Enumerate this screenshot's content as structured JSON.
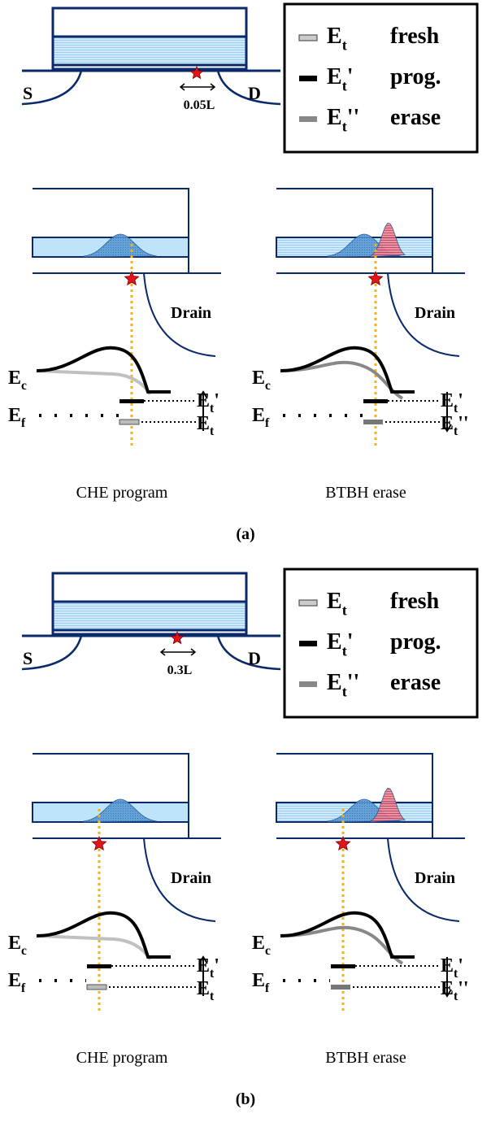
{
  "panels": [
    {
      "label": "(a)",
      "device": {
        "source": "S",
        "drain": "D",
        "offset": "0.05L"
      },
      "legend": [
        {
          "symbol": "E",
          "sub": "t",
          "text": "fresh"
        },
        {
          "symbol": "E",
          "sub": "t",
          "prime": "'",
          "text": "prog."
        },
        {
          "symbol": "E",
          "sub": "t",
          "prime": "''",
          "text": "erase"
        }
      ],
      "program": {
        "drain": "Drain",
        "ec": {
          "symbol": "E",
          "sub": "c"
        },
        "ef": {
          "symbol": "E",
          "sub": "f"
        },
        "upper": {
          "symbol": "E",
          "sub": "t",
          "prime": "'"
        },
        "lower": {
          "symbol": "E",
          "sub": "t"
        },
        "caption": "CHE program"
      },
      "erase": {
        "drain": "Drain",
        "ec": {
          "symbol": "E",
          "sub": "c"
        },
        "ef": {
          "symbol": "E",
          "sub": "f"
        },
        "upper": {
          "symbol": "E",
          "sub": "t",
          "prime": "'"
        },
        "lower": {
          "symbol": "E",
          "sub": "t",
          "prime": "''"
        },
        "caption": "BTBH erase"
      }
    },
    {
      "label": "(b)",
      "device": {
        "source": "S",
        "drain": "D",
        "offset": "0.3L"
      },
      "legend": [
        {
          "symbol": "E",
          "sub": "t",
          "text": "fresh"
        },
        {
          "symbol": "E",
          "sub": "t",
          "prime": "'",
          "text": "prog."
        },
        {
          "symbol": "E",
          "sub": "t",
          "prime": "''",
          "text": "erase"
        }
      ],
      "program": {
        "drain": "Drain",
        "ec": {
          "symbol": "E",
          "sub": "c"
        },
        "ef": {
          "symbol": "E",
          "sub": "f"
        },
        "upper": {
          "symbol": "E",
          "sub": "t",
          "prime": "'"
        },
        "lower": {
          "symbol": "E",
          "sub": "t"
        },
        "caption": "CHE program"
      },
      "erase": {
        "drain": "Drain",
        "ec": {
          "symbol": "E",
          "sub": "c"
        },
        "ef": {
          "symbol": "E",
          "sub": "f"
        },
        "upper": {
          "symbol": "E",
          "sub": "t",
          "prime": "'"
        },
        "lower": {
          "symbol": "E",
          "sub": "t",
          "prime": "''"
        },
        "caption": "BTBH erase"
      }
    }
  ]
}
